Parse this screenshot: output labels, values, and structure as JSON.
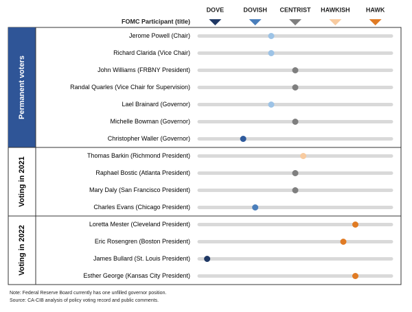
{
  "chart_data": {
    "type": "dot",
    "title": "FOMC Participant (title)",
    "xlim": [
      0.6,
      5.4
    ],
    "xticks": [
      {
        "value": 1,
        "label": "DOVE"
      },
      {
        "value": 2,
        "label": "DOVISH"
      },
      {
        "value": 3,
        "label": "CENTRIST"
      },
      {
        "value": 4,
        "label": "HAWKISH"
      },
      {
        "value": 5,
        "label": "HAWK"
      }
    ],
    "tick_colors": [
      "#1f3864",
      "#4a7ebb",
      "#7f7f7f",
      "#f8cba0",
      "#e07b24"
    ],
    "groups": [
      {
        "name": "Permanent voters",
        "categories": [
          "Jerome Powell (Chair)",
          "Richard Clarida (Vice Chair)",
          "John Williams (FRBNY President)",
          "Randal Quarles (Vice Chair for Supervision)",
          "Lael Brainard (Governor)",
          "Michelle Bowman (Governor)",
          "Christopher Waller (Governor)"
        ],
        "values": [
          2.4,
          2.4,
          3.0,
          3.0,
          2.4,
          3.0,
          1.7
        ],
        "colors": [
          "#9dc3e6",
          "#9dc3e6",
          "#7f7f7f",
          "#7f7f7f",
          "#9dc3e6",
          "#7f7f7f",
          "#2e5a9c"
        ]
      },
      {
        "name": "Voting in 2021",
        "categories": [
          "Thomas Barkin (Richmond President)",
          "Raphael Bostic (Atlanta President)",
          "Mary Daly (San Francisco President)",
          "Charles Evans (Chicago President)"
        ],
        "values": [
          3.2,
          3.0,
          3.0,
          2.0
        ],
        "colors": [
          "#f8cba0",
          "#7f7f7f",
          "#7f7f7f",
          "#4a7ebb"
        ]
      },
      {
        "name": "Voting in 2022",
        "categories": [
          "Loretta Mester (Cleveland President)",
          "Eric Rosengren (Boston President)",
          "James Bullard (St. Louis President)",
          "Esther George (Kansas City President)"
        ],
        "values": [
          4.5,
          4.2,
          0.8,
          4.5
        ],
        "colors": [
          "#e07b24",
          "#e07b24",
          "#1f3864",
          "#e07b24"
        ]
      }
    ],
    "notes": [
      "Note: Federal Reserve Board currently has one unfilled  governor position.",
      "Source: CA-CIB analysis of policy voting record and public comments."
    ]
  }
}
